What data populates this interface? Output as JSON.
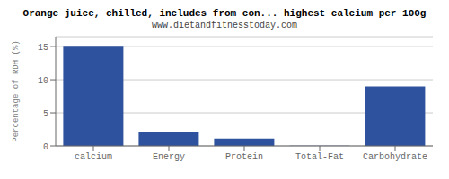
{
  "chart_data": {
    "type": "bar",
    "title": "Orange juice, chilled, includes from con... highest calcium per 100g",
    "subtitle": "www.dietandfitnesstoday.com",
    "ylabel": "Percentage of RDH (%)",
    "categories": [
      "calcium",
      "Energy",
      "Protein",
      "Total-Fat",
      "Carbohydrate"
    ],
    "values": [
      15.1,
      2.1,
      1.1,
      0.05,
      9.0
    ],
    "color": "#2e529e",
    "ylim": [
      0,
      16.5
    ],
    "yticks": [
      0,
      5,
      10,
      15
    ],
    "grid": true
  }
}
